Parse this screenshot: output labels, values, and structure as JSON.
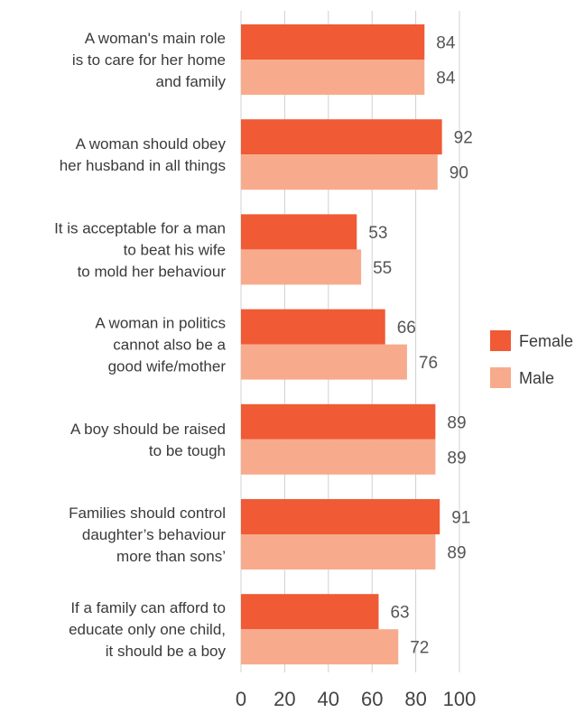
{
  "chart_data": {
    "type": "bar",
    "orientation": "horizontal",
    "categories": [
      [
        "A woman's main role",
        "is to care for her home",
        "and family"
      ],
      [
        "A woman should obey",
        "her husband in all things"
      ],
      [
        "It is acceptable for a man",
        "to beat his wife",
        "to mold her behaviour"
      ],
      [
        "A woman in politics",
        "cannot also be a",
        "good wife/mother"
      ],
      [
        "A boy should be raised",
        "to be tough"
      ],
      [
        "Families should control",
        "daughter’s behaviour",
        "more than sons’"
      ],
      [
        "If a family can afford to",
        "educate only one child,",
        "it should be a boy"
      ]
    ],
    "series": [
      {
        "name": "Female",
        "color": "#f05a35",
        "values": [
          84,
          92,
          53,
          66,
          89,
          91,
          63
        ]
      },
      {
        "name": "Male",
        "color": "#f7ab8c",
        "values": [
          84,
          90,
          55,
          76,
          89,
          89,
          72
        ]
      }
    ],
    "xlim": [
      0,
      100
    ],
    "xticks": [
      0,
      20,
      40,
      60,
      80,
      100
    ],
    "grid": true,
    "legend_position": "right"
  }
}
